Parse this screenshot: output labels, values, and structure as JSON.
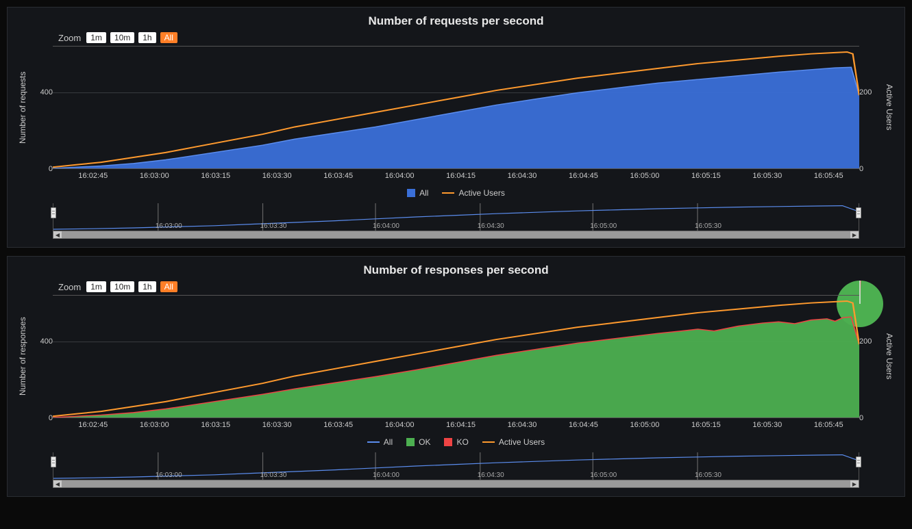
{
  "colors": {
    "panel_bg": "#14161a",
    "panel_border": "#2a2d33",
    "page_bg": "#0a0a0a",
    "grid": "#3a3d42",
    "axis_text": "#cccccc",
    "title_text": "#e8e8e8",
    "all_blue": "#3a6fd8",
    "all_line_blue": "#5b8def",
    "active_users_orange": "#ff9a2e",
    "ok_green": "#4caf50",
    "ko_red": "#ef4444",
    "zoom_active_bg": "#ff7f27",
    "zoom_active_fg": "#ffffff",
    "zoom_bg": "#ffffff",
    "zoom_fg": "#222222",
    "scrollbar": "#9a9a9a",
    "scroll_btn": "#c8c8c8",
    "nav_line": "#5b8def"
  },
  "zoom": {
    "label": "Zoom",
    "options": [
      "1m",
      "10m",
      "1h",
      "All"
    ],
    "active": "All"
  },
  "xaxis": {
    "ticks": [
      "16:02:45",
      "16:03:00",
      "16:03:15",
      "16:03:30",
      "16:03:45",
      "16:04:00",
      "16:04:15",
      "16:04:30",
      "16:04:45",
      "16:05:00",
      "16:05:15",
      "16:05:30",
      "16:05:45"
    ],
    "positions_pct": [
      5,
      12.6,
      20.2,
      27.8,
      35.4,
      43,
      50.6,
      58.2,
      65.8,
      73.4,
      81,
      88.6,
      96.2
    ]
  },
  "nav_xaxis": {
    "ticks": [
      "16:03:00",
      "16:03:30",
      "16:04:00",
      "16:04:30",
      "16:05:00",
      "16:05:30"
    ],
    "positions_pct": [
      13,
      26,
      40,
      53,
      67,
      80
    ]
  },
  "chart1": {
    "type": "area-line",
    "title": "Number of requests per second",
    "y_left": {
      "label": "Number of requests",
      "ticks": [
        {
          "v": "0",
          "pos": 0
        },
        {
          "v": "400",
          "pos": 62
        }
      ],
      "max": 650
    },
    "y_right": {
      "label": "Active Users",
      "ticks": [
        {
          "v": "0",
          "pos": 0
        },
        {
          "v": "200",
          "pos": 62
        }
      ],
      "max": 320
    },
    "legend": [
      {
        "type": "sq",
        "color": "#3a6fd8",
        "label": "All"
      },
      {
        "type": "ln",
        "color": "#ff9a2e",
        "label": "Active Users"
      }
    ],
    "series_all": {
      "color_fill": "#3a6fd8",
      "color_stroke": "#5b8def",
      "points_pct": [
        [
          0,
          0
        ],
        [
          3,
          1
        ],
        [
          6,
          2
        ],
        [
          10,
          4
        ],
        [
          14,
          7
        ],
        [
          18,
          11
        ],
        [
          22,
          15
        ],
        [
          26,
          19
        ],
        [
          30,
          24
        ],
        [
          35,
          29
        ],
        [
          40,
          34
        ],
        [
          45,
          40
        ],
        [
          50,
          46
        ],
        [
          55,
          52
        ],
        [
          60,
          57
        ],
        [
          65,
          62
        ],
        [
          70,
          66
        ],
        [
          75,
          70
        ],
        [
          80,
          73
        ],
        [
          85,
          76
        ],
        [
          90,
          79
        ],
        [
          94,
          81
        ],
        [
          97,
          82.5
        ],
        [
          99,
          83
        ],
        [
          100,
          60
        ]
      ]
    },
    "series_active": {
      "color_stroke": "#ff9a2e",
      "points_pct": [
        [
          0,
          1
        ],
        [
          3,
          3
        ],
        [
          6,
          5
        ],
        [
          10,
          9
        ],
        [
          14,
          13
        ],
        [
          18,
          18
        ],
        [
          22,
          23
        ],
        [
          26,
          28
        ],
        [
          30,
          34
        ],
        [
          35,
          40
        ],
        [
          40,
          46
        ],
        [
          45,
          52
        ],
        [
          50,
          58
        ],
        [
          55,
          64
        ],
        [
          60,
          69
        ],
        [
          65,
          74
        ],
        [
          70,
          78
        ],
        [
          75,
          82
        ],
        [
          80,
          86
        ],
        [
          85,
          89
        ],
        [
          90,
          92
        ],
        [
          94,
          94
        ],
        [
          97,
          95
        ],
        [
          98.5,
          95.5
        ],
        [
          99.2,
          94
        ],
        [
          100,
          60
        ]
      ]
    }
  },
  "chart2": {
    "type": "area-line",
    "title": "Number of responses per second",
    "y_left": {
      "label": "Number of responses",
      "ticks": [
        {
          "v": "0",
          "pos": 0
        },
        {
          "v": "400",
          "pos": 62
        }
      ],
      "max": 650
    },
    "y_right": {
      "label": "Active Users",
      "ticks": [
        {
          "v": "0",
          "pos": 0
        },
        {
          "v": "200",
          "pos": 62
        }
      ],
      "max": 320
    },
    "legend": [
      {
        "type": "ln",
        "color": "#5b8def",
        "label": "All"
      },
      {
        "type": "sq",
        "color": "#4caf50",
        "label": "OK"
      },
      {
        "type": "sq",
        "color": "#ef4444",
        "label": "KO"
      },
      {
        "type": "ln",
        "color": "#ff9a2e",
        "label": "Active Users"
      }
    ],
    "series_ok": {
      "color_fill": "#4caf50",
      "color_stroke": "#ef4444",
      "points_pct": [
        [
          0,
          0
        ],
        [
          3,
          1
        ],
        [
          6,
          2
        ],
        [
          10,
          4
        ],
        [
          14,
          7
        ],
        [
          18,
          11
        ],
        [
          22,
          15
        ],
        [
          26,
          19
        ],
        [
          30,
          23.5
        ],
        [
          35,
          28.5
        ],
        [
          40,
          33.5
        ],
        [
          45,
          39
        ],
        [
          50,
          45
        ],
        [
          55,
          51
        ],
        [
          60,
          56
        ],
        [
          65,
          61
        ],
        [
          70,
          65
        ],
        [
          75,
          69
        ],
        [
          78,
          71
        ],
        [
          80,
          72.5
        ],
        [
          82,
          71
        ],
        [
          85,
          75
        ],
        [
          88,
          77.5
        ],
        [
          90,
          78.5
        ],
        [
          92,
          77
        ],
        [
          94,
          80
        ],
        [
          96,
          81
        ],
        [
          97,
          79
        ],
        [
          98,
          82
        ],
        [
          99,
          82.5
        ],
        [
          100,
          60
        ]
      ]
    },
    "series_active": {
      "color_stroke": "#ff9a2e",
      "points_pct": [
        [
          0,
          1
        ],
        [
          3,
          3
        ],
        [
          6,
          5
        ],
        [
          10,
          9
        ],
        [
          14,
          13
        ],
        [
          18,
          18
        ],
        [
          22,
          23
        ],
        [
          26,
          28
        ],
        [
          30,
          34
        ],
        [
          35,
          40
        ],
        [
          40,
          46
        ],
        [
          45,
          52
        ],
        [
          50,
          58
        ],
        [
          55,
          64
        ],
        [
          60,
          69
        ],
        [
          65,
          74
        ],
        [
          70,
          78
        ],
        [
          75,
          82
        ],
        [
          80,
          86
        ],
        [
          85,
          89
        ],
        [
          90,
          92
        ],
        [
          94,
          94
        ],
        [
          97,
          95
        ],
        [
          98.5,
          95.5
        ],
        [
          99.2,
          94
        ],
        [
          100,
          60
        ]
      ]
    },
    "pie": {
      "ok_pct": 99.3,
      "ko_pct": 0.7,
      "ok_color": "#4caf50",
      "ko_color": "#ef4444"
    }
  },
  "navigator": {
    "series": {
      "color_stroke": "#5b8def",
      "points_pct": [
        [
          0,
          5
        ],
        [
          5,
          7
        ],
        [
          10,
          10
        ],
        [
          15,
          14
        ],
        [
          20,
          18
        ],
        [
          25,
          24
        ],
        [
          30,
          30
        ],
        [
          35,
          36
        ],
        [
          40,
          43
        ],
        [
          45,
          50
        ],
        [
          50,
          56
        ],
        [
          55,
          62
        ],
        [
          60,
          67
        ],
        [
          65,
          72
        ],
        [
          70,
          76
        ],
        [
          75,
          80
        ],
        [
          80,
          83
        ],
        [
          85,
          86
        ],
        [
          90,
          88
        ],
        [
          95,
          90
        ],
        [
          98,
          91
        ],
        [
          100,
          70
        ]
      ]
    }
  },
  "scrollbar": {
    "left_glyph": "◀",
    "right_glyph": "▶"
  }
}
